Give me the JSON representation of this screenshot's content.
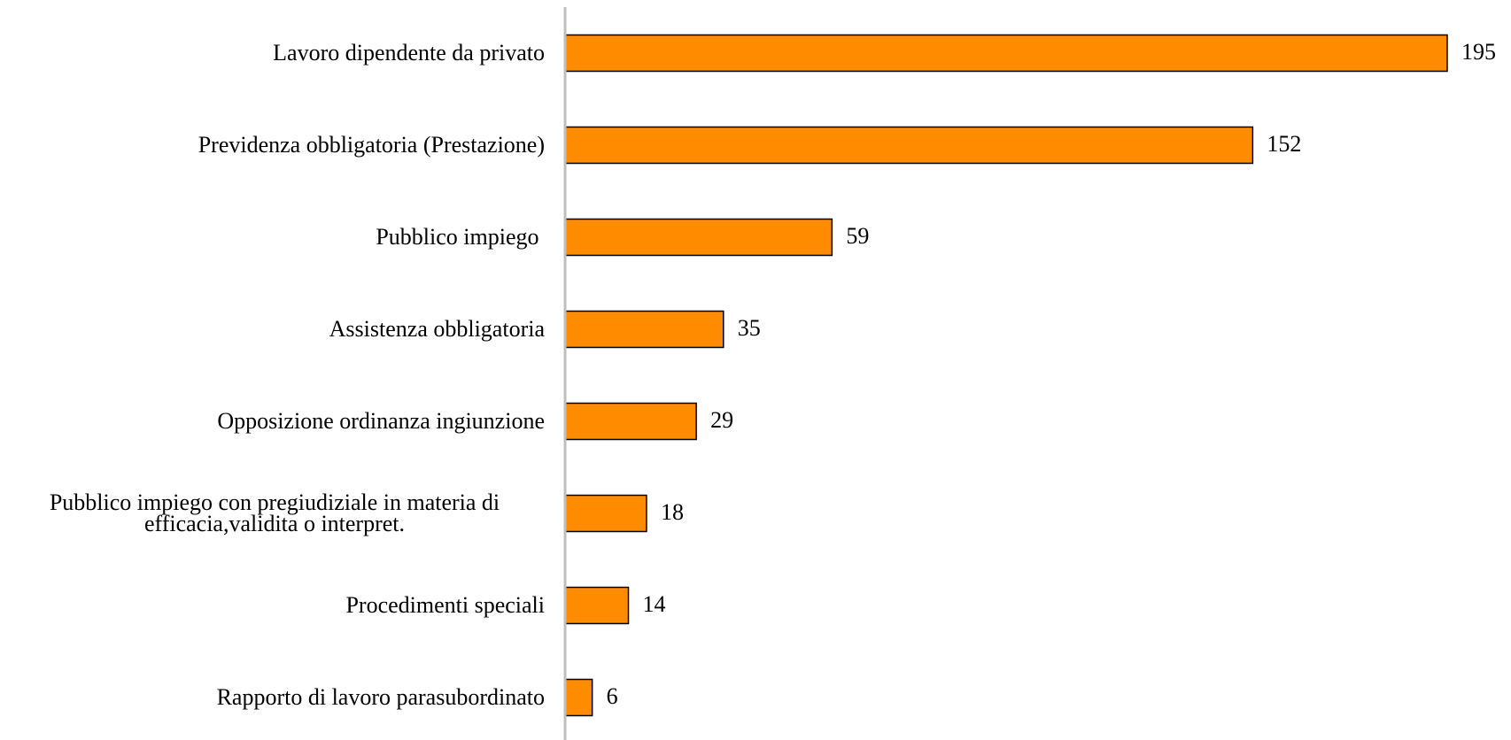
{
  "chart_data": {
    "type": "bar",
    "orientation": "horizontal",
    "categories": [
      "Lavoro dipendente da privato",
      "Previdenza obbligatoria (Prestazione)",
      "Pubblico impiego ",
      "Assistenza obbligatoria",
      "Opposizione ordinanza ingiunzione",
      "Pubblico impiego con pregiudiziale in materia di efficacia,validita o interpret.",
      "Procedimenti speciali",
      "Rapporto di lavoro parasubordinato"
    ],
    "values": [
      195,
      152,
      59,
      35,
      29,
      18,
      14,
      6
    ],
    "color": "#ff8c00"
  }
}
